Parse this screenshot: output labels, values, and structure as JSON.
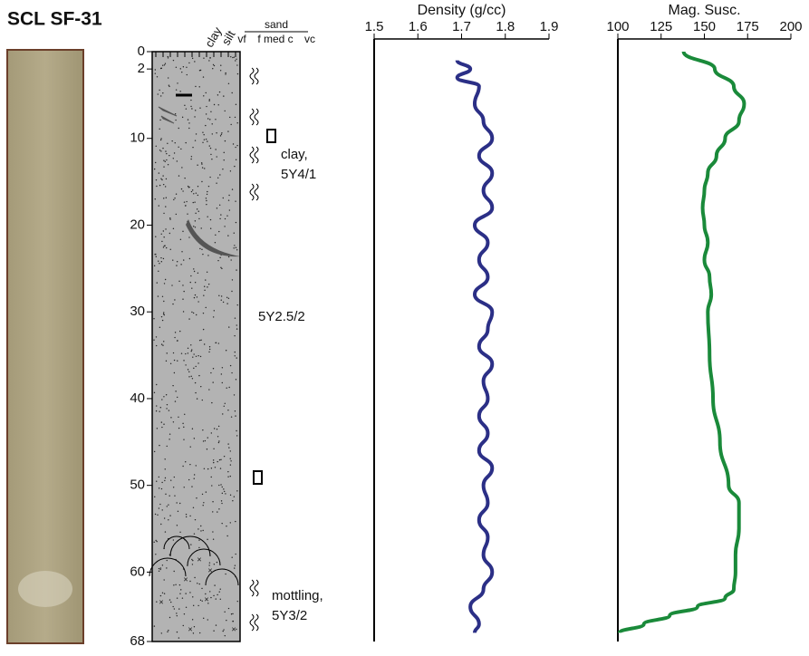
{
  "chart_data": [
    {
      "type": "core-log",
      "title": "SCL SF-31",
      "ylim": [
        0,
        68
      ],
      "yticks": [
        0,
        2,
        10,
        20,
        30,
        40,
        50,
        60,
        68
      ],
      "grain_size": {
        "clay": "clay",
        "silt": "silt",
        "vf": "vf",
        "sand": "sand",
        "sand_classes": "f med c",
        "vc": "vc"
      },
      "annotations": [
        "clay,",
        "5Y4/1",
        "5Y2.5/2",
        "mottling,",
        "5Y3/2"
      ]
    },
    {
      "type": "line",
      "title": "Density (g/cc)",
      "color": "#2b2f86",
      "xlim": [
        1.5,
        1.9
      ],
      "xticks": [
        1.5,
        1.6,
        1.7,
        1.8,
        1.9
      ],
      "ylim": [
        0,
        68
      ],
      "depths": [
        1,
        2,
        3,
        4,
        6,
        8,
        10,
        12,
        14,
        16,
        18,
        20,
        22,
        24,
        26,
        28,
        30,
        32,
        34,
        36,
        38,
        40,
        42,
        44,
        46,
        48,
        50,
        52,
        54,
        56,
        58,
        60,
        62,
        64,
        66,
        67
      ],
      "values": [
        1.69,
        1.72,
        1.69,
        1.74,
        1.73,
        1.75,
        1.77,
        1.74,
        1.77,
        1.75,
        1.77,
        1.73,
        1.76,
        1.74,
        1.76,
        1.73,
        1.77,
        1.76,
        1.74,
        1.77,
        1.75,
        1.76,
        1.74,
        1.76,
        1.74,
        1.77,
        1.75,
        1.76,
        1.74,
        1.76,
        1.75,
        1.77,
        1.75,
        1.72,
        1.74,
        1.73
      ]
    },
    {
      "type": "line",
      "title": "Mag. Susc.",
      "color": "#1a8a3a",
      "xlim": [
        100,
        200
      ],
      "xticks": [
        100,
        125,
        150,
        175,
        200
      ],
      "ylim": [
        0,
        68
      ],
      "depths": [
        0,
        2,
        4,
        6,
        8,
        10,
        12,
        14,
        16,
        18,
        20,
        22,
        24,
        26,
        28,
        30,
        35,
        40,
        45,
        50,
        52,
        55,
        58,
        60,
        62,
        63,
        64,
        65,
        66,
        67
      ],
      "values": [
        138,
        156,
        167,
        173,
        170,
        162,
        157,
        152,
        150,
        149,
        150,
        152,
        150,
        153,
        154,
        152,
        153,
        155,
        159,
        164,
        170,
        170,
        168,
        168,
        167,
        162,
        146,
        130,
        115,
        101
      ]
    }
  ]
}
